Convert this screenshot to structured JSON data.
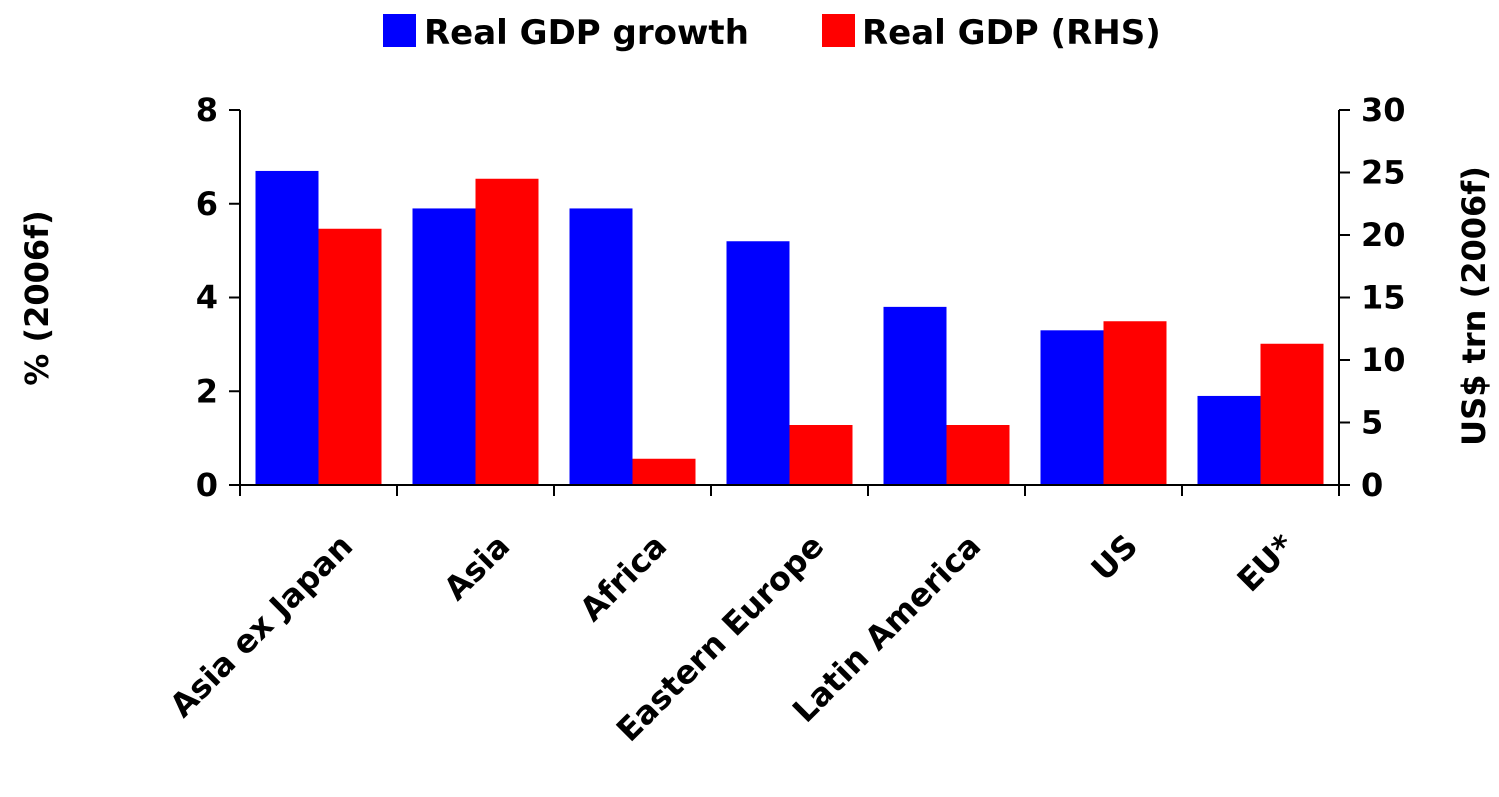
{
  "chart_data": {
    "type": "bar",
    "title": "",
    "categories": [
      "Asia ex Japan",
      "Asia",
      "Africa",
      "Eastern Europe",
      "Latin America",
      "US",
      "EU*"
    ],
    "series": [
      {
        "name": "Real GDP growth",
        "axis": "left",
        "color": "#0000ff",
        "values": [
          6.7,
          5.9,
          5.9,
          5.2,
          3.8,
          3.3,
          1.9
        ]
      },
      {
        "name": "Real GDP (RHS)",
        "axis": "right",
        "color": "#ff0000",
        "values": [
          20.5,
          24.5,
          2.1,
          4.8,
          4.8,
          13.1,
          11.3
        ]
      }
    ],
    "y_left": {
      "label": "% (2006f)",
      "ylim": [
        0,
        8
      ],
      "ticks": [
        "0",
        "2",
        "4",
        "6",
        "8"
      ]
    },
    "y_right": {
      "label": "US$ trn (2006f)",
      "ylim": [
        0,
        30
      ],
      "ticks": [
        "0",
        "5",
        "10",
        "15",
        "20",
        "25",
        "30"
      ]
    },
    "xlabel": "",
    "grid": false,
    "legend_position": "top-center"
  }
}
